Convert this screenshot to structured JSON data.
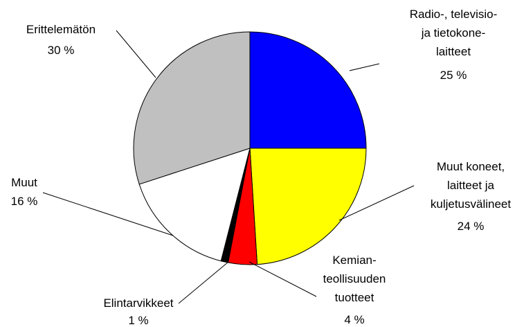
{
  "chart_data": {
    "type": "pie",
    "categories": [
      "Radio-, televisio-\nja tietokone-\nlaitteet",
      "Muut koneet,\nlaitteet ja\nkuljetusvälineet",
      "Kemian-\nteollisuuden\ntuotteet",
      "Elintarvikkeet",
      "Muut",
      "Erittelemätön"
    ],
    "values": [
      25,
      24,
      4,
      1,
      16,
      30
    ],
    "value_labels": [
      "25 %",
      "24 %",
      "4 %",
      "1 %",
      "16 %",
      "30 %"
    ],
    "colors": [
      "#0000ff",
      "#ffff00",
      "#ff0000",
      "#000000",
      "#ffffff",
      "#c0c0c0"
    ]
  }
}
